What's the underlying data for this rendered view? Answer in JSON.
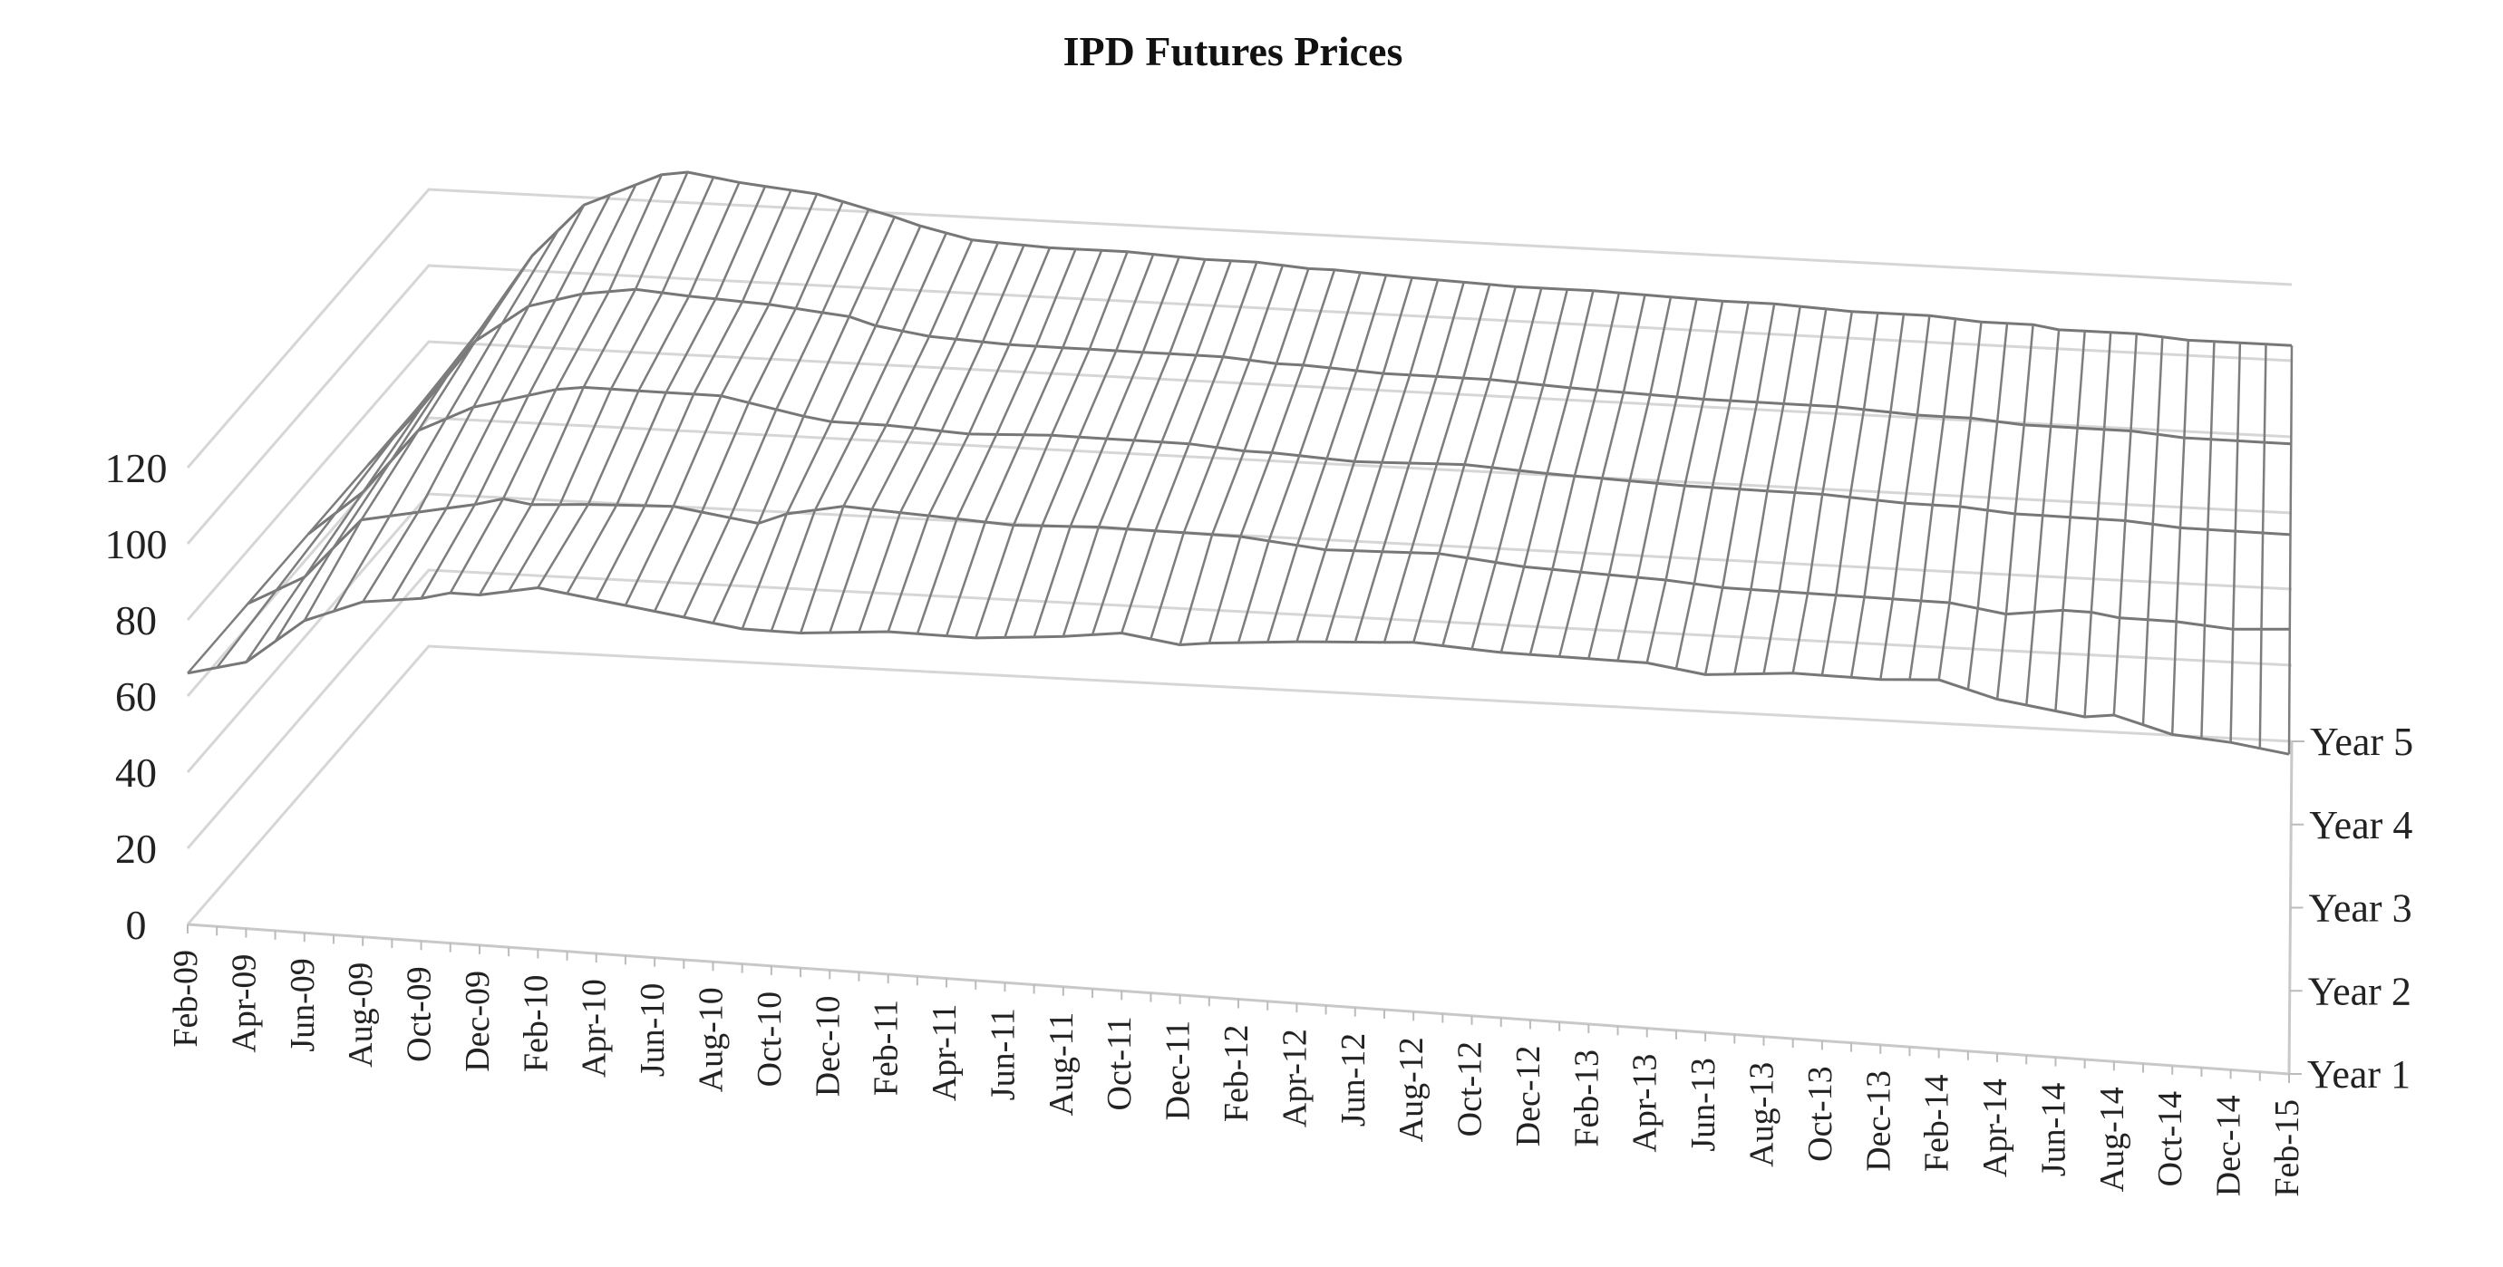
{
  "chart_data": {
    "type": "surface",
    "title": "IPD Futures Prices",
    "x_tick_labels": [
      "Feb-09",
      "Apr-09",
      "Jun-09",
      "Aug-09",
      "Oct-09",
      "Dec-09",
      "Feb-10",
      "Apr-10",
      "Jun-10",
      "Aug-10",
      "Oct-10",
      "Dec-10",
      "Feb-11",
      "Apr-11",
      "Jun-11",
      "Aug-11",
      "Oct-11",
      "Dec-11",
      "Feb-12",
      "Apr-12",
      "Jun-12",
      "Aug-12",
      "Oct-12",
      "Dec-12",
      "Feb-13",
      "Apr-13",
      "Jun-13",
      "Aug-13",
      "Oct-13",
      "Dec-13",
      "Feb-14",
      "Apr-14",
      "Jun-14",
      "Aug-14",
      "Oct-14",
      "Dec-14",
      "Feb-15"
    ],
    "depth_labels": [
      "Year 1",
      "Year 2",
      "Year 3",
      "Year 4",
      "Year 5"
    ],
    "y_ticks": [
      0,
      20,
      40,
      60,
      80,
      100,
      120
    ],
    "ylim": [
      0,
      140
    ],
    "grid": true,
    "series": [
      {
        "name": "Year 1",
        "anchors": [
          [
            0,
            66
          ],
          [
            2,
            70
          ],
          [
            4,
            82
          ],
          [
            6,
            88
          ],
          [
            8,
            90
          ],
          [
            9,
            92
          ],
          [
            10,
            92
          ],
          [
            12,
            95
          ],
          [
            15,
            92
          ],
          [
            18,
            89
          ],
          [
            19,
            88
          ],
          [
            21,
            88
          ],
          [
            24,
            90
          ],
          [
            27,
            90
          ],
          [
            30,
            92
          ],
          [
            32,
            94
          ],
          [
            34,
            92
          ],
          [
            35,
            93
          ],
          [
            38,
            95
          ],
          [
            42,
            97
          ],
          [
            45,
            96
          ],
          [
            50,
            96
          ],
          [
            52,
            94
          ],
          [
            55,
            96
          ],
          [
            58,
            96
          ],
          [
            60,
            97
          ],
          [
            62,
            93
          ],
          [
            63,
            92
          ],
          [
            64,
            91
          ],
          [
            65,
            90
          ],
          [
            66,
            91
          ],
          [
            68,
            87
          ],
          [
            70,
            86
          ],
          [
            72,
            84
          ],
          [
            75,
            84
          ],
          [
            78,
            85
          ],
          [
            80,
            86
          ],
          [
            82,
            84
          ],
          [
            85,
            85
          ],
          [
            88,
            87
          ],
          [
            90,
            87
          ],
          [
            93,
            88
          ],
          [
            96,
            89
          ],
          [
            99,
            90
          ],
          [
            101,
            90
          ],
          [
            104,
            89
          ],
          [
            106,
            91
          ],
          [
            108,
            93
          ],
          [
            111,
            93
          ],
          [
            114,
            93
          ],
          [
            117,
            93
          ],
          [
            120,
            94
          ],
          [
            122,
            94
          ]
        ]
      },
      {
        "name": "Year 2",
        "anchors": [
          [
            0,
            66
          ],
          [
            2,
            74
          ],
          [
            4,
            90
          ],
          [
            6,
            93
          ],
          [
            8,
            96
          ],
          [
            9,
            98
          ],
          [
            10,
            97
          ],
          [
            12,
            98
          ],
          [
            15,
            99
          ],
          [
            18,
            96
          ],
          [
            19,
            99
          ],
          [
            21,
            102
          ],
          [
            24,
            101
          ],
          [
            27,
            100
          ],
          [
            30,
            101
          ],
          [
            32,
            101
          ],
          [
            34,
            101
          ],
          [
            35,
            101
          ],
          [
            38,
            99
          ],
          [
            42,
            100
          ],
          [
            45,
            98
          ],
          [
            50,
            97
          ],
          [
            52,
            96
          ],
          [
            55,
            96
          ],
          [
            58,
            96
          ],
          [
            60,
            96
          ],
          [
            62,
            94
          ],
          [
            63,
            95
          ],
          [
            64,
            96
          ],
          [
            65,
            96
          ],
          [
            66,
            95
          ],
          [
            68,
            95
          ],
          [
            70,
            94
          ],
          [
            72,
            95
          ],
          [
            75,
            95
          ],
          [
            78,
            94
          ],
          [
            80,
            94
          ],
          [
            82,
            94
          ],
          [
            85,
            95
          ],
          [
            88,
            95
          ],
          [
            90,
            95
          ],
          [
            93,
            95
          ],
          [
            96,
            95
          ],
          [
            99,
            95
          ],
          [
            101,
            95
          ],
          [
            104,
            95
          ],
          [
            106,
            94
          ],
          [
            108,
            95
          ],
          [
            111,
            95
          ],
          [
            114,
            95
          ],
          [
            117,
            95
          ],
          [
            120,
            95
          ],
          [
            122,
            95
          ]
        ]
      },
      {
        "name": "Year 3",
        "anchors": [
          [
            0,
            66
          ],
          [
            2,
            78
          ],
          [
            4,
            95
          ],
          [
            6,
            102
          ],
          [
            8,
            106
          ],
          [
            9,
            108
          ],
          [
            10,
            109
          ],
          [
            12,
            109
          ],
          [
            15,
            109
          ],
          [
            18,
            105
          ],
          [
            19,
            104
          ],
          [
            21,
            104
          ],
          [
            24,
            103
          ],
          [
            27,
            104
          ],
          [
            30,
            104
          ],
          [
            32,
            104
          ],
          [
            34,
            103
          ],
          [
            35,
            103
          ],
          [
            38,
            102
          ],
          [
            42,
            103
          ],
          [
            45,
            102
          ],
          [
            50,
            101
          ],
          [
            52,
            101
          ],
          [
            55,
            101
          ],
          [
            58,
            100
          ],
          [
            60,
            100
          ],
          [
            62,
            99
          ],
          [
            63,
            99
          ],
          [
            64,
            99
          ],
          [
            65,
            99
          ],
          [
            66,
            99
          ],
          [
            68,
            98
          ],
          [
            70,
            98
          ],
          [
            72,
            98
          ],
          [
            75,
            98
          ],
          [
            78,
            98
          ],
          [
            80,
            97
          ],
          [
            82,
            97
          ],
          [
            85,
            97
          ],
          [
            88,
            97
          ],
          [
            90,
            97
          ],
          [
            93,
            97
          ],
          [
            96,
            97
          ],
          [
            99,
            97
          ],
          [
            101,
            97
          ],
          [
            104,
            97
          ],
          [
            106,
            97
          ],
          [
            108,
            97
          ],
          [
            111,
            97
          ],
          [
            114,
            96
          ],
          [
            117,
            96
          ],
          [
            120,
            96
          ],
          [
            122,
            96
          ]
        ]
      },
      {
        "name": "Year 4",
        "anchors": [
          [
            0,
            66
          ],
          [
            2,
            82
          ],
          [
            4,
            100
          ],
          [
            6,
            110
          ],
          [
            8,
            114
          ],
          [
            9,
            115
          ],
          [
            10,
            116
          ],
          [
            12,
            115
          ],
          [
            15,
            114
          ],
          [
            18,
            112
          ],
          [
            19,
            110
          ],
          [
            21,
            108
          ],
          [
            24,
            107
          ],
          [
            27,
            107
          ],
          [
            30,
            107
          ],
          [
            32,
            107
          ],
          [
            34,
            106
          ],
          [
            35,
            106
          ],
          [
            38,
            105
          ],
          [
            42,
            105
          ],
          [
            45,
            104
          ],
          [
            50,
            103
          ],
          [
            52,
            103
          ],
          [
            55,
            103
          ],
          [
            58,
            102
          ],
          [
            60,
            102
          ],
          [
            62,
            101
          ],
          [
            63,
            101
          ],
          [
            64,
            101
          ],
          [
            65,
            101
          ],
          [
            66,
            101
          ],
          [
            68,
            100
          ],
          [
            70,
            100
          ],
          [
            72,
            100
          ],
          [
            75,
            100
          ],
          [
            78,
            100
          ],
          [
            80,
            99
          ],
          [
            82,
            99
          ],
          [
            85,
            99
          ],
          [
            88,
            99
          ],
          [
            90,
            99
          ],
          [
            93,
            98
          ],
          [
            96,
            98
          ],
          [
            99,
            98
          ],
          [
            101,
            98
          ],
          [
            104,
            98
          ],
          [
            106,
            98
          ],
          [
            108,
            98
          ],
          [
            111,
            98
          ],
          [
            114,
            98
          ],
          [
            117,
            98
          ],
          [
            120,
            97
          ],
          [
            122,
            97
          ]
        ]
      },
      {
        "name": "Year 5",
        "anchors": [
          [
            0,
            66
          ],
          [
            2,
            84
          ],
          [
            4,
            104
          ],
          [
            6,
            118
          ],
          [
            8,
            124
          ],
          [
            9,
            127
          ],
          [
            10,
            128
          ],
          [
            12,
            126
          ],
          [
            15,
            124
          ],
          [
            18,
            119
          ],
          [
            19,
            117
          ],
          [
            21,
            114
          ],
          [
            24,
            113
          ],
          [
            27,
            113
          ],
          [
            30,
            112
          ],
          [
            32,
            112
          ],
          [
            34,
            111
          ],
          [
            35,
            111
          ],
          [
            38,
            110
          ],
          [
            42,
            109
          ],
          [
            45,
            109
          ],
          [
            50,
            108
          ],
          [
            52,
            108
          ],
          [
            55,
            107
          ],
          [
            58,
            107
          ],
          [
            60,
            106
          ],
          [
            62,
            106
          ],
          [
            63,
            105
          ],
          [
            64,
            105
          ],
          [
            65,
            105
          ],
          [
            66,
            105
          ],
          [
            68,
            104
          ],
          [
            70,
            104
          ],
          [
            72,
            104
          ],
          [
            75,
            104
          ],
          [
            78,
            103
          ],
          [
            80,
            103
          ],
          [
            82,
            103
          ],
          [
            85,
            103
          ],
          [
            88,
            102
          ],
          [
            90,
            102
          ],
          [
            93,
            102
          ],
          [
            96,
            102
          ],
          [
            99,
            102
          ],
          [
            101,
            102
          ],
          [
            104,
            102
          ],
          [
            106,
            101
          ],
          [
            108,
            101
          ],
          [
            111,
            101
          ],
          [
            114,
            101
          ],
          [
            117,
            101
          ],
          [
            120,
            101
          ],
          [
            122,
            96
          ]
        ]
      }
    ]
  }
}
